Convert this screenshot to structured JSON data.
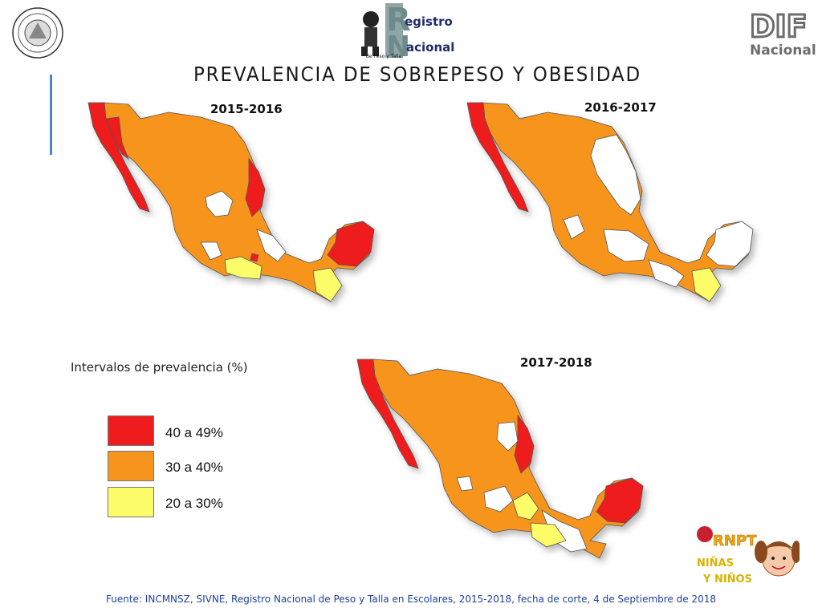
{
  "header": {
    "title": "PREVALENCIA DE SOBREPESO Y OBESIDAD",
    "rnpt_logo": {
      "line1": "egistro",
      "line2": "acional",
      "tag": "de Peso y Talla",
      "letter": "R",
      "letter2": "N"
    },
    "dif_logo": {
      "text": "DIF",
      "sub": "Nacional"
    },
    "seal_icon": "institutional-seal-icon"
  },
  "maps": [
    {
      "year": "2015-2016"
    },
    {
      "year": "2016-2017"
    },
    {
      "year": "2017-2018"
    }
  ],
  "legend": {
    "title": "Intervalos de prevalencia (%)",
    "items": [
      {
        "label": "40 a 49%",
        "color": "#ee1c1c"
      },
      {
        "label": "30 a 40%",
        "color": "#f7941d"
      },
      {
        "label": "20 a 30%",
        "color": "#fdfd6a"
      }
    ]
  },
  "colors": {
    "none": "#ffffff",
    "accent_bar": "#4a86c8",
    "source_text": "#1f3f9a"
  },
  "footer": {
    "source": "Fuente: INCMNSZ, SIVNE, Registro Nacional de Peso y Talla en Escolares, 2015-2018, fecha de corte, 4 de Septiembre de 2018"
  },
  "kid_logo": {
    "top": "RNPT",
    "mid": "NIÑAS",
    "bottom": "Y NIÑOS"
  }
}
